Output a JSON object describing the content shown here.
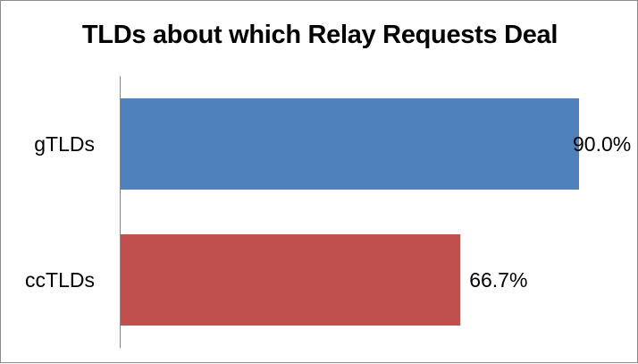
{
  "chart_data": {
    "type": "bar",
    "orientation": "horizontal",
    "title": "TLDs about which Relay Requests Deal",
    "categories": [
      "gTLDs",
      "ccTLDs"
    ],
    "values": [
      90.0,
      66.7
    ],
    "data_labels": [
      "90.0%",
      "66.7%"
    ],
    "colors": [
      "#4f81bd",
      "#c0504d"
    ],
    "xlim": [
      0,
      100
    ],
    "grid": false,
    "legend": "none",
    "xlabel": "",
    "ylabel": ""
  }
}
